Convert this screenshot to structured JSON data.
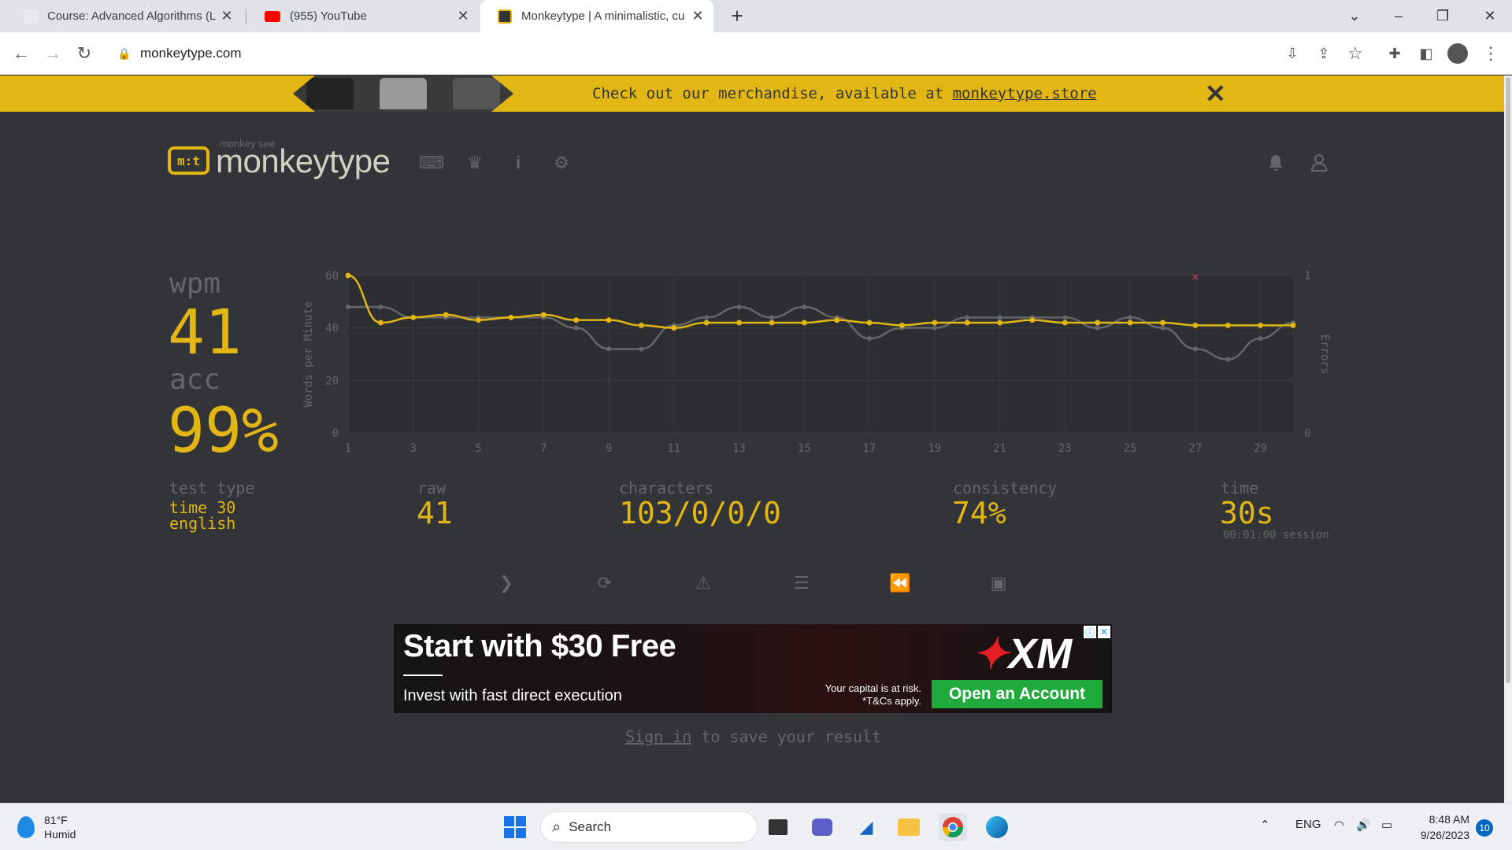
{
  "browser": {
    "tabs": [
      {
        "title": "Course: Advanced Algorithms (L",
        "active": false
      },
      {
        "title": "(955) YouTube",
        "active": false
      },
      {
        "title": "Monkeytype | A minimalistic, cu",
        "active": true
      }
    ],
    "url": "monkeytype.com"
  },
  "banner": {
    "text": "Check out our merchandise, available at ",
    "link": "monkeytype.store"
  },
  "header": {
    "logo_mark": "m:t",
    "logo_small": "monkey see",
    "logo_text": "monkeytype"
  },
  "stats": {
    "wpm_label": "wpm",
    "wpm": "41",
    "acc_label": "acc",
    "acc": "99%",
    "test_type_label": "test type",
    "test_type_line1": "time 30",
    "test_type_line2": "english",
    "raw_label": "raw",
    "raw": "41",
    "characters_label": "characters",
    "characters": "103/0/0/0",
    "consistency_label": "consistency",
    "consistency": "74%",
    "time_label": "time",
    "time": "30s",
    "session": "00:01:00 session"
  },
  "chart_data": {
    "type": "line",
    "x": [
      1,
      2,
      3,
      4,
      5,
      6,
      7,
      8,
      9,
      10,
      11,
      12,
      13,
      14,
      15,
      16,
      17,
      18,
      19,
      20,
      21,
      22,
      23,
      24,
      25,
      26,
      27,
      28,
      29,
      30
    ],
    "x_ticks": [
      1,
      3,
      5,
      7,
      9,
      11,
      13,
      15,
      17,
      19,
      21,
      23,
      25,
      27,
      29
    ],
    "y_ticks": [
      0,
      20,
      40,
      60
    ],
    "ylim": [
      0,
      60
    ],
    "ylabel": "Words per Minute",
    "y2label": "Errors",
    "y2_ticks": [
      0,
      1
    ],
    "series": [
      {
        "color": "#e2b714",
        "values": [
          60,
          42,
          44,
          45,
          43,
          44,
          45,
          43,
          43,
          41,
          40,
          42,
          42,
          42,
          42,
          43,
          42,
          41,
          42,
          42,
          42,
          43,
          42,
          42,
          42,
          42,
          41,
          41,
          41,
          41
        ]
      },
      {
        "color": "#646669",
        "values": [
          48,
          48,
          44,
          44,
          44,
          44,
          44,
          40,
          32,
          32,
          41,
          44,
          48,
          44,
          48,
          44,
          36,
          40,
          40,
          44,
          44,
          44,
          44,
          40,
          44,
          40,
          32,
          28,
          36,
          42
        ]
      }
    ],
    "errors": [
      {
        "x": 27,
        "count": 1
      }
    ]
  },
  "actions": [
    {
      "name": "next-test-button",
      "icon": "chevron-right-icon"
    },
    {
      "name": "repeat-test-button",
      "icon": "refresh-icon"
    },
    {
      "name": "practice-mistakes-button",
      "icon": "warning-icon"
    },
    {
      "name": "show-words-history-button",
      "icon": "align-left-icon"
    },
    {
      "name": "watch-replay-button",
      "icon": "backward-icon"
    },
    {
      "name": "save-screenshot-button",
      "icon": "image-icon"
    }
  ],
  "ad": {
    "headline": "Start with $30 Free",
    "subline": "Invest with fast direct execution",
    "risk_line1": "Your capital is at risk.",
    "risk_line2": "*T&Cs apply.",
    "cta": "Open an Account",
    "brand": "XM"
  },
  "signin": {
    "link": "Sign in",
    "rest": " to save your result"
  },
  "taskbar": {
    "weather_temp": "81°F",
    "weather_desc": "Humid",
    "search_placeholder": "Search",
    "lang": "ENG",
    "time": "8:48 AM",
    "date": "9/26/2023",
    "notifications": "10"
  },
  "colors": {
    "bg": "#323437",
    "accent": "#e2b714",
    "sub": "#646669",
    "text": "#d1d0c5"
  }
}
